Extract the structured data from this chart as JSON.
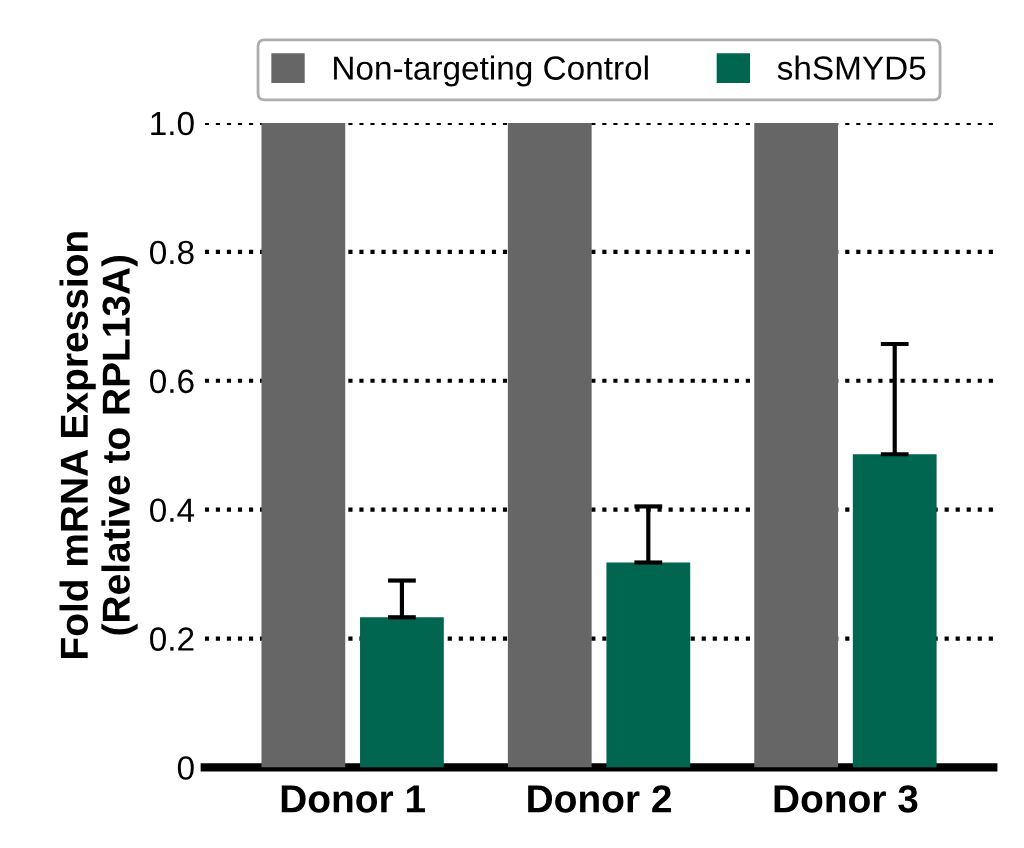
{
  "chart_data": {
    "type": "bar",
    "ylabel": "Fold mRNA Expression\n(Relative to RPL13A)",
    "categories": [
      "Donor 1",
      "Donor 2",
      "Donor 3"
    ],
    "series": [
      {
        "name": "Non-targeting Control",
        "color": "#666666",
        "values": [
          1.0,
          1.0,
          1.0
        ]
      },
      {
        "name": "shSMYD5",
        "color": "#00664f",
        "values": [
          0.233,
          0.318,
          0.486
        ],
        "errors": [
          [
            0.233,
            0.29
          ],
          [
            0.318,
            0.405
          ],
          [
            0.486,
            0.657
          ]
        ]
      }
    ],
    "ylim": [
      0,
      1.0
    ],
    "yticks": [
      0,
      {
        "value": 0.2,
        "label": "0.2"
      },
      {
        "value": 0.4,
        "label": "0.4"
      },
      {
        "value": 0.6,
        "label": "0.6"
      },
      {
        "value": 0.8,
        "label": "0.8"
      },
      {
        "value": 1.0,
        "label": "1.0"
      }
    ],
    "grid": "y",
    "legend": "top"
  }
}
